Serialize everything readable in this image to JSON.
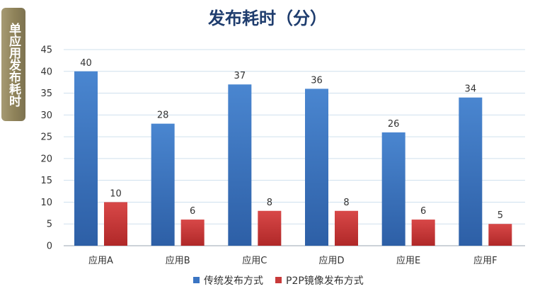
{
  "side_label": "单应用发布耗时",
  "chart_data": {
    "type": "bar",
    "title": "发布耗时（分）",
    "categories": [
      "应用A",
      "应用B",
      "应用C",
      "应用D",
      "应用E",
      "应用F"
    ],
    "series": [
      {
        "name": "传统发布方式",
        "values": [
          40,
          28,
          37,
          36,
          26,
          34
        ],
        "color": "#3b75c3"
      },
      {
        "name": "P2P镜像发布方式",
        "values": [
          10,
          6,
          8,
          8,
          6,
          5
        ],
        "color": "#c83a3a"
      }
    ],
    "ylim": [
      0,
      45
    ],
    "yticks": [
      0,
      5,
      10,
      15,
      20,
      25,
      30,
      35,
      40,
      45
    ],
    "grid": true,
    "legend_position": "bottom"
  }
}
